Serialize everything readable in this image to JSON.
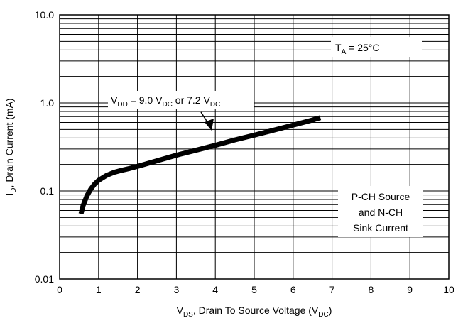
{
  "chart_data": {
    "type": "line",
    "xlabel": {
      "main": "V",
      "sub": "DS",
      "rest": ", Drain To Source Voltage (V",
      "sub2": "DC",
      "end": ")"
    },
    "ylabel": {
      "main": "I",
      "sub": "D",
      "rest": ", Drain Current (mA)"
    },
    "xlim": [
      0,
      10
    ],
    "ylim": [
      0.01,
      10
    ],
    "yscale": "log",
    "grid": true,
    "x_ticks": [
      "0",
      "1",
      "2",
      "3",
      "4",
      "5",
      "6",
      "7",
      "8",
      "9",
      "10"
    ],
    "y_ticks": [
      "0.01",
      "0.1",
      "1.0",
      "10.0"
    ],
    "series": [
      {
        "x": [
          0.55,
          0.6,
          0.7,
          0.8,
          0.9,
          1.0,
          1.2,
          1.4,
          1.6,
          1.8,
          2.0,
          2.5,
          3.0,
          3.5,
          4.0,
          4.5,
          5.0,
          5.5,
          6.0,
          6.5,
          6.7
        ],
        "y": [
          0.055,
          0.068,
          0.088,
          0.105,
          0.12,
          0.132,
          0.15,
          0.163,
          0.172,
          0.18,
          0.19,
          0.22,
          0.255,
          0.29,
          0.33,
          0.38,
          0.43,
          0.49,
          0.56,
          0.64,
          0.68
        ]
      }
    ],
    "annotations": {
      "temp": {
        "main": "T",
        "sub": "A",
        "rest": " = 25°C"
      },
      "vdd": {
        "main": "V",
        "sub": "DD",
        "mid": " = 9.0 V",
        "sub2": "DC",
        "mid2": " or 7.2 V",
        "sub3": "DC"
      },
      "note_lines": [
        "P-CH Source",
        "and N-CH",
        "Sink Current"
      ]
    }
  }
}
